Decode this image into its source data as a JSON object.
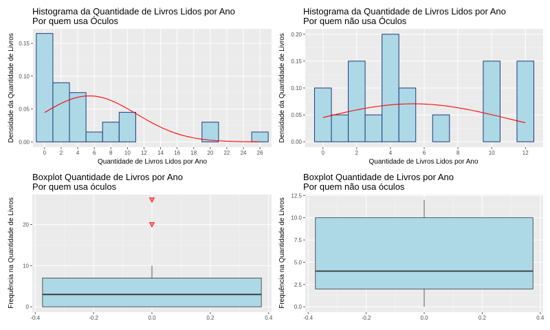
{
  "colors": {
    "panel_bg": "#ebebeb",
    "grid_major": "#ffffff",
    "bar_fill": "#add8e6",
    "bar_stroke": "#1f3a78",
    "curve": "#ff0000",
    "box_fill": "#add8e6",
    "box_stroke": "#333333",
    "outlier_fill": "#ff8080",
    "outlier_stroke": "#ff0000"
  },
  "chart_data": [
    {
      "id": "hist-oculos",
      "type": "bar",
      "title": "Histograma da Quantidade de Livros Lidos por Ano",
      "subtitle": "Por quem usa Óculos",
      "xlabel": "Quantidade de Livros Lidos por Ano",
      "ylabel": "Densidade da Quantidade de Livros",
      "xlim": [
        -1.4,
        27.4
      ],
      "ylim": [
        -0.008,
        0.172
      ],
      "xticks": [
        0,
        2,
        4,
        6,
        8,
        10,
        12,
        14,
        16,
        18,
        20,
        22,
        24,
        26
      ],
      "yticks": [
        0,
        0.05,
        0.1,
        0.15
      ],
      "ytick_labels": [
        "0.00",
        "0.05",
        "0.10",
        "0.15"
      ],
      "bars": [
        {
          "from": -1,
          "to": 1,
          "value": 0.165
        },
        {
          "from": 1,
          "to": 3,
          "value": 0.09
        },
        {
          "from": 3,
          "to": 5,
          "value": 0.075
        },
        {
          "from": 5,
          "to": 7,
          "value": 0.015
        },
        {
          "from": 7,
          "to": 9,
          "value": 0.03
        },
        {
          "from": 9,
          "to": 11,
          "value": 0.045
        },
        {
          "from": 19,
          "to": 21,
          "value": 0.03
        },
        {
          "from": 25,
          "to": 27,
          "value": 0.015
        }
      ],
      "curve": {
        "type": "normal",
        "mean": 5.4,
        "sd": 5.7,
        "x_from": 0,
        "x_to": 26
      }
    },
    {
      "id": "hist-nao-oculos",
      "type": "bar",
      "title": "Histograma da Quantidade de Livros Lidos por Ano",
      "subtitle": "Por quem não usa Óculos",
      "xlabel": "Quantidade de Livros Lidos por Ano",
      "ylabel": "Densidade da Quantidade de Livros",
      "xlim": [
        -1.05,
        13.05
      ],
      "ylim": [
        -0.01,
        0.21
      ],
      "xticks": [
        0,
        2,
        4,
        6,
        8,
        10,
        12
      ],
      "yticks": [
        0,
        0.05,
        0.1,
        0.15,
        0.2
      ],
      "ytick_labels": [
        "0.00",
        "0.05",
        "0.10",
        "0.15",
        "0.20"
      ],
      "bars": [
        {
          "from": -0.5,
          "to": 0.5,
          "value": 0.1
        },
        {
          "from": 0.5,
          "to": 1.5,
          "value": 0.05
        },
        {
          "from": 1.5,
          "to": 2.5,
          "value": 0.15
        },
        {
          "from": 2.5,
          "to": 3.5,
          "value": 0.05
        },
        {
          "from": 3.5,
          "to": 4.5,
          "value": 0.2
        },
        {
          "from": 4.5,
          "to": 5.5,
          "value": 0.1
        },
        {
          "from": 6.5,
          "to": 7.5,
          "value": 0.05
        },
        {
          "from": 9.5,
          "to": 10.5,
          "value": 0.15
        },
        {
          "from": 11.5,
          "to": 12.5,
          "value": 0.15
        }
      ],
      "curve": {
        "type": "normal",
        "mean": 5.35,
        "sd": 5.65,
        "x_from": 0,
        "x_to": 12
      }
    },
    {
      "id": "box-oculos",
      "type": "box",
      "title": "Boxplot Quantidade de Livros por Ano",
      "subtitle": "Por quem usa óculos",
      "xlabel": "",
      "ylabel": "Frequência na Quantidade de Livros",
      "xlim": [
        -0.41,
        0.41
      ],
      "ylim": [
        -1.3,
        27.3
      ],
      "xticks": [
        -0.4,
        -0.2,
        0,
        0.2,
        0.4
      ],
      "xtick_labels": [
        "-0.4",
        "-0.2",
        "0.0",
        "0.2",
        "0.4"
      ],
      "yticks": [
        0,
        10,
        20
      ],
      "ytick_labels": [
        "0",
        "10",
        "20"
      ],
      "box": {
        "x_from": -0.375,
        "x_to": 0.375,
        "q1": 0,
        "median": 3,
        "q3": 7,
        "whisker_low": 0,
        "whisker_high": 10
      },
      "outliers": [
        20,
        26
      ]
    },
    {
      "id": "box-nao-oculos",
      "type": "box",
      "title": "Boxplot Quantidade de Livros por Ano",
      "subtitle": "Por quem não usa óculos",
      "xlabel": "",
      "ylabel": "Frequência na Quantidade de Livros",
      "xlim": [
        -0.41,
        0.41
      ],
      "ylim": [
        -0.6,
        12.6
      ],
      "xticks": [
        -0.4,
        -0.2,
        0,
        0.2,
        0.4
      ],
      "xtick_labels": [
        "-0.4",
        "-0.2",
        "0.0",
        "0.2",
        "0.4"
      ],
      "yticks": [
        0,
        2.5,
        5,
        7.5,
        10,
        12.5
      ],
      "ytick_labels": [
        "0.0",
        "2.5",
        "5.0",
        "7.5",
        "10.0",
        "12.5"
      ],
      "box": {
        "x_from": -0.375,
        "x_to": 0.375,
        "q1": 2,
        "median": 4,
        "q3": 10,
        "whisker_low": 0,
        "whisker_high": 12
      },
      "outliers": []
    }
  ]
}
